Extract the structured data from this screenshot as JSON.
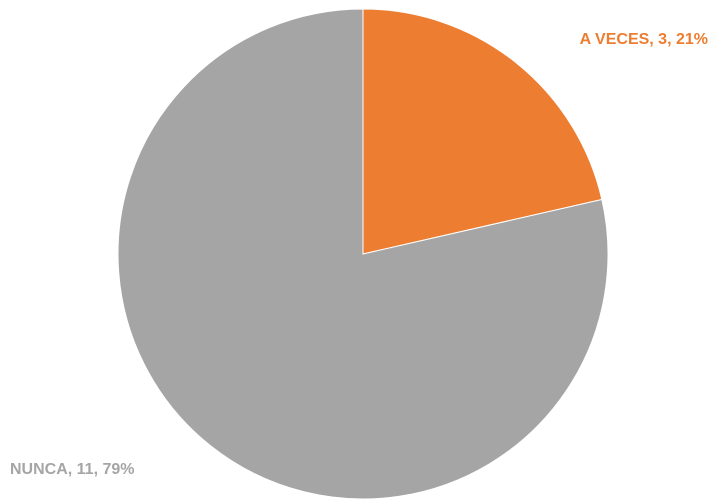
{
  "chart_data": {
    "type": "pie",
    "values": [
      3,
      11
    ],
    "value_labels": [
      "A VECES, 3, 21%",
      "NUNCA, 11, 79%"
    ],
    "colors": [
      "#ED7D31",
      "#A5A5A5"
    ]
  }
}
